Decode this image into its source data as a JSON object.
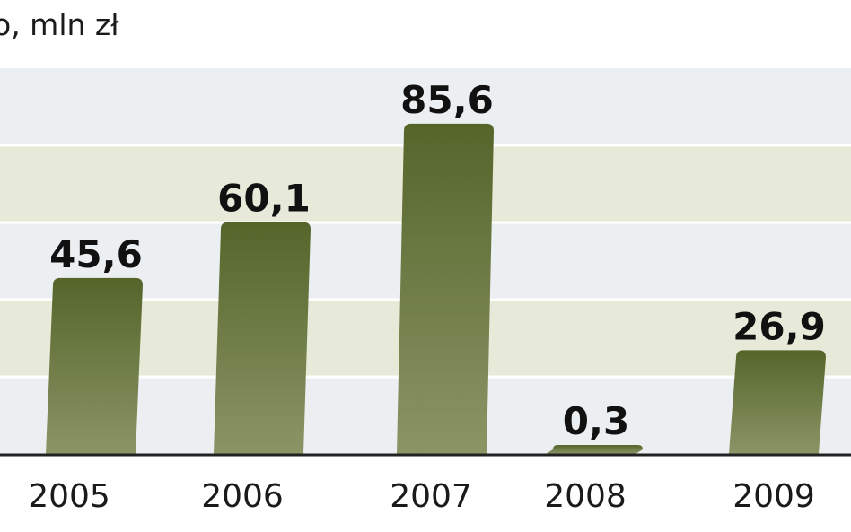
{
  "chart_data": {
    "type": "bar",
    "unit_label": "o, mln zł",
    "categories": [
      "2005",
      "2006",
      "2007",
      "2008",
      "2009"
    ],
    "values": [
      45.6,
      60.1,
      85.6,
      0.3,
      26.9
    ],
    "value_labels": [
      "45,6",
      "60,1",
      "85,6",
      "0,3",
      "26,9"
    ],
    "ylim": [
      0,
      100
    ],
    "grid": true,
    "colors": {
      "bar_top": "#55652a",
      "bar_bottom": "#8a9566",
      "band_light": "#eceff2",
      "band_tint": "#e8ead9",
      "text": "#111111"
    }
  }
}
